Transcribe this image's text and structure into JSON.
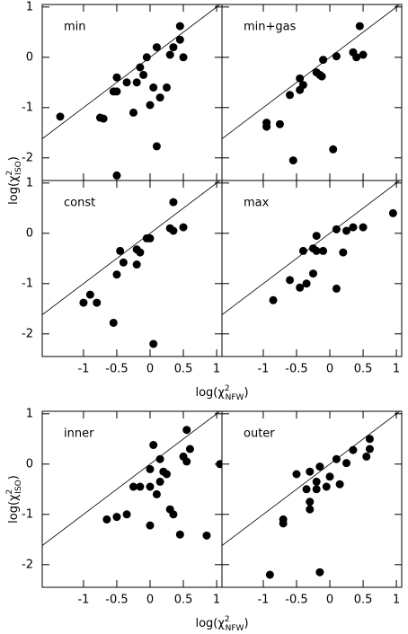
{
  "chart_data": [
    {
      "type": "scatter",
      "annotation": "min",
      "x": [
        -1.35,
        -0.75,
        -0.7,
        -0.55,
        -0.5,
        -0.5,
        -0.35,
        -0.25,
        -0.2,
        -0.15,
        -0.1,
        -0.05,
        0,
        0.05,
        0.1,
        0.15,
        0.25,
        0.3,
        0.35,
        0.45,
        0.5,
        0.45,
        0.1,
        -0.5
      ],
      "y": [
        -1.18,
        -1.2,
        -1.22,
        -0.68,
        -0.68,
        -0.4,
        -0.5,
        -1.1,
        -0.5,
        -0.2,
        -0.35,
        0,
        -0.95,
        -0.6,
        0.2,
        -0.8,
        -0.6,
        0.05,
        0.2,
        0.35,
        0.0,
        0.62,
        -1.77,
        -2.35
      ],
      "xlim": [
        -1.62,
        1.08
      ],
      "ylim": [
        -2.45,
        1.05
      ],
      "xticks": [
        -1,
        -0.5,
        0,
        0.5,
        1
      ],
      "yticks": [
        1,
        0,
        -1,
        -2
      ],
      "ylabel": {
        "text": "log(χ",
        "sup": "2",
        "sub": "ISO",
        "end": ")"
      }
    },
    {
      "type": "scatter",
      "annotation": "min+gas",
      "x": [
        -0.95,
        -0.95,
        -0.75,
        -0.6,
        -0.55,
        -0.45,
        -0.45,
        -0.4,
        -0.2,
        -0.15,
        -0.1,
        -0.12,
        0.05,
        0.1,
        0.35,
        0.4,
        0.45,
        0.5
      ],
      "y": [
        -1.3,
        -1.38,
        -1.33,
        -0.75,
        -2.05,
        -0.42,
        -0.65,
        -0.55,
        -0.3,
        -0.35,
        -0.05,
        -0.38,
        -1.83,
        0.02,
        0.1,
        0.0,
        0.62,
        0.05
      ],
      "xlim": [
        -1.62,
        1.08
      ],
      "ylim": [
        -2.45,
        1.05
      ],
      "xticks": [
        -1,
        -0.5,
        0,
        0.5,
        1
      ],
      "yticks": [
        1,
        0,
        -1,
        -2
      ]
    },
    {
      "type": "scatter",
      "annotation": "const",
      "x": [
        -1.0,
        -0.9,
        -0.8,
        -0.55,
        -0.5,
        -0.45,
        -0.4,
        -0.2,
        -0.2,
        -0.15,
        -0.05,
        0,
        0.05,
        0.3,
        0.35,
        0.35,
        0.5
      ],
      "y": [
        -1.38,
        -1.22,
        -1.38,
        -1.78,
        -0.82,
        -0.35,
        -0.58,
        -0.62,
        -0.32,
        -0.38,
        -0.1,
        -0.1,
        -2.2,
        0.1,
        0.62,
        0.05,
        0.12
      ],
      "xlim": [
        -1.62,
        1.08
      ],
      "ylim": [
        -2.45,
        1.05
      ],
      "xticks": [
        -1,
        -0.5,
        0,
        0.5,
        1
      ],
      "yticks": [
        1,
        0,
        -1,
        -2
      ],
      "xlabel": {
        "text": "log(χ",
        "sup": "2",
        "sub": "NFW",
        "end": ")"
      }
    },
    {
      "type": "scatter",
      "annotation": "max",
      "x": [
        -0.85,
        -0.6,
        -0.45,
        -0.4,
        -0.35,
        -0.25,
        -0.25,
        -0.2,
        -0.2,
        -0.1,
        0.1,
        0.1,
        0.2,
        0.25,
        0.35,
        0.5,
        0.95
      ],
      "y": [
        -1.33,
        -0.93,
        -1.08,
        -0.35,
        -1.0,
        -0.3,
        -0.8,
        -0.35,
        -0.05,
        -0.35,
        -1.1,
        0.08,
        -0.38,
        0.05,
        0.12,
        0.12,
        0.4
      ],
      "xlim": [
        -1.62,
        1.08
      ],
      "ylim": [
        -2.45,
        1.05
      ],
      "xticks": [
        -1,
        -0.5,
        0,
        0.5,
        1
      ],
      "yticks": [
        1,
        0,
        -1,
        -2
      ]
    },
    {
      "type": "scatter",
      "annotation": "inner",
      "x": [
        -0.65,
        -0.5,
        -0.35,
        -0.25,
        -0.15,
        0,
        0,
        0,
        0.05,
        0.1,
        0.15,
        0.15,
        0.2,
        0.25,
        0.3,
        0.35,
        0.45,
        0.5,
        0.55,
        0.55,
        0.6,
        0.85,
        1.05
      ],
      "y": [
        -1.1,
        -1.05,
        -1.0,
        -0.45,
        -0.45,
        -0.1,
        -0.45,
        -1.22,
        0.38,
        -0.6,
        0.1,
        -0.35,
        -0.15,
        -0.2,
        -0.9,
        -1.0,
        -1.4,
        0.15,
        0.68,
        0.05,
        0.3,
        -1.42,
        0.0
      ],
      "xlim": [
        -1.62,
        1.08
      ],
      "ylim": [
        -2.45,
        1.05
      ],
      "xticks": [
        -1,
        -0.5,
        0,
        0.5,
        1
      ],
      "yticks": [
        1,
        0,
        -1,
        -2
      ],
      "xlabel": {
        "text": "log(χ",
        "sup": "2",
        "sub": "NFW",
        "end": ")"
      },
      "ylabel": {
        "text": "log(χ",
        "sup": "2",
        "sub": "ISO",
        "end": ")"
      }
    },
    {
      "type": "scatter",
      "annotation": "outer",
      "x": [
        -0.9,
        -0.7,
        -0.7,
        -0.5,
        -0.35,
        -0.3,
        -0.3,
        -0.3,
        -0.2,
        -0.2,
        -0.15,
        -0.15,
        -0.05,
        0,
        0.1,
        0.15,
        0.25,
        0.35,
        0.55,
        0.6,
        0.6
      ],
      "y": [
        -2.2,
        -1.1,
        -1.18,
        -0.2,
        -0.5,
        -0.75,
        -0.9,
        -0.15,
        -0.5,
        -0.35,
        -0.05,
        -2.15,
        -0.45,
        -0.25,
        0.1,
        -0.4,
        0.02,
        0.28,
        0.15,
        0.5,
        0.3
      ],
      "xlim": [
        -1.62,
        1.08
      ],
      "ylim": [
        -2.45,
        1.05
      ],
      "xticks": [
        -1,
        -0.5,
        0,
        0.5,
        1
      ],
      "yticks": [
        1,
        0,
        -1,
        -2
      ]
    }
  ]
}
